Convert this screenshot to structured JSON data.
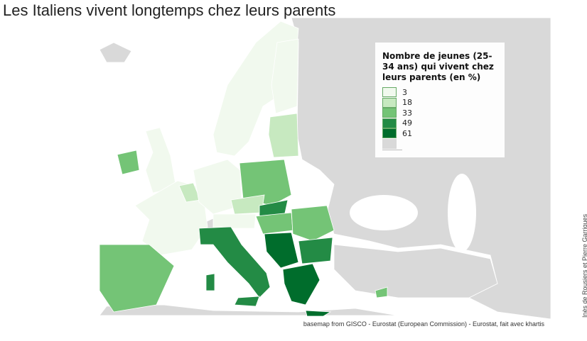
{
  "title": "Les Italiens vivent longtemps chez leurs parents",
  "legend": {
    "title": "Nombre de jeunes (25-34 ans) qui vivent chez leurs parents (en %)",
    "items": [
      {
        "label": 3,
        "color": "#f1f9ee"
      },
      {
        "label": 18,
        "color": "#c7e9c0"
      },
      {
        "label": 33,
        "color": "#74c476"
      },
      {
        "label": 49,
        "color": "#238b45"
      },
      {
        "label": 61,
        "color": "#006d2c"
      }
    ],
    "no_data_color": "#d9d9d9"
  },
  "source": "basemap from GISCO - Eurostat (European Commission) - Eurostat, fait avec khartis",
  "credit": "Inès de Rousiers et Pierre Garrigues"
}
